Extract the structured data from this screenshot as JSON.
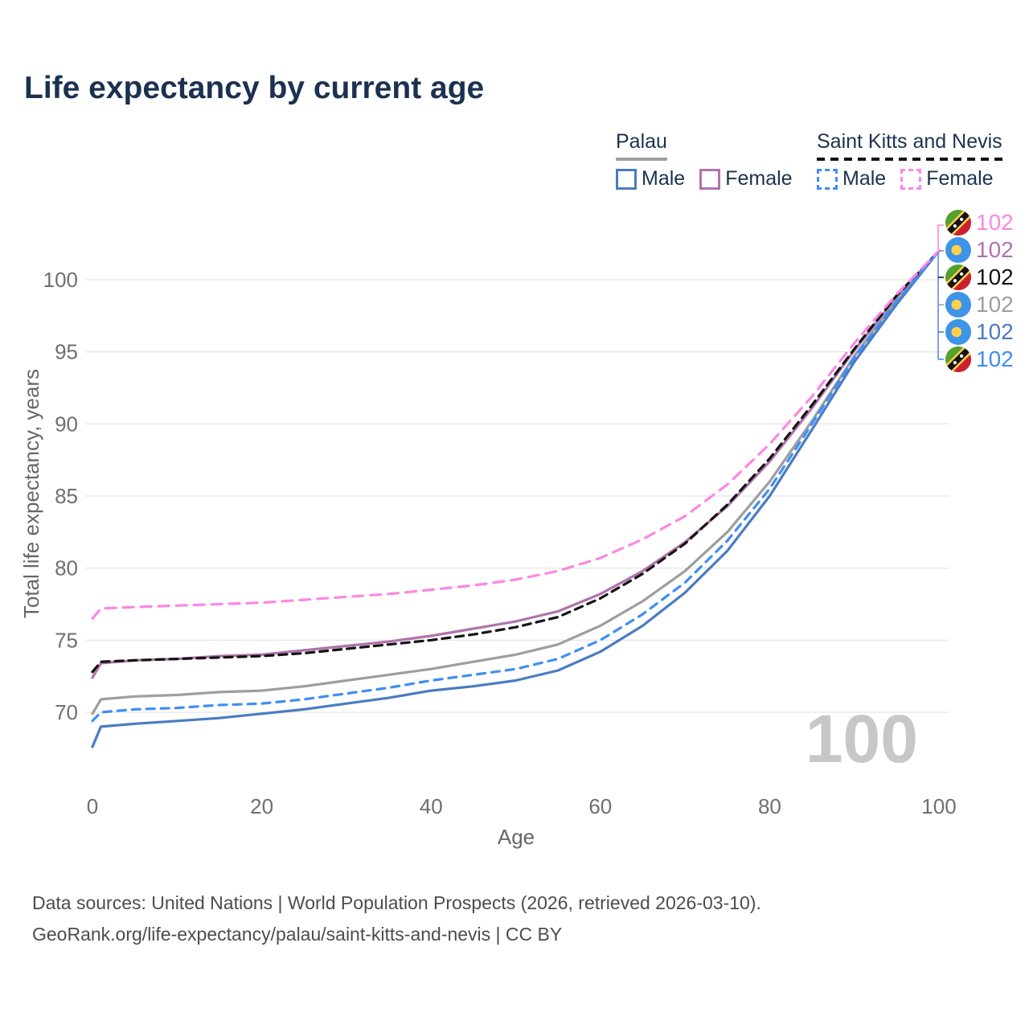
{
  "title": "Life expectancy by current age",
  "legend": {
    "groups": [
      {
        "name": "Palau",
        "line_style": "solid",
        "color": "#9e9e9e",
        "items": [
          {
            "label": "Male",
            "color": "#4b7bc2",
            "dashed": false
          },
          {
            "label": "Female",
            "color": "#b073ac",
            "dashed": false
          }
        ]
      },
      {
        "name": "Saint Kitts and Nevis",
        "line_style": "dashed",
        "color": "#141414",
        "items": [
          {
            "label": "Male",
            "color": "#3f8ef5",
            "dashed": true
          },
          {
            "label": "Female",
            "color": "#fb87e3",
            "dashed": true
          }
        ]
      }
    ]
  },
  "chart_data": {
    "type": "line",
    "title": "Life expectancy by current age",
    "xlabel": "Age",
    "ylabel": "Total life expectancy, years",
    "xticks": [
      0,
      20,
      40,
      60,
      80,
      100
    ],
    "yticks": [
      70,
      75,
      80,
      85,
      90,
      95,
      100
    ],
    "xlim": [
      0,
      100
    ],
    "ylim": [
      66,
      103
    ],
    "grid": "horizontal",
    "watermark": "100",
    "x": [
      0,
      1,
      5,
      10,
      15,
      20,
      25,
      30,
      35,
      40,
      45,
      50,
      55,
      60,
      65,
      70,
      75,
      80,
      85,
      90,
      95,
      100
    ],
    "series": [
      {
        "id": "palau-male",
        "label": "Male",
        "country": "Palau",
        "color": "#4b7bc2",
        "line_style": "solid",
        "values": [
          67.6,
          69.0,
          69.2,
          69.4,
          69.6,
          69.9,
          70.2,
          70.6,
          71.0,
          71.5,
          71.8,
          72.2,
          72.9,
          74.2,
          76.0,
          78.3,
          81.2,
          85.0,
          89.6,
          94.3,
          98.3,
          102
        ]
      },
      {
        "id": "palau-female",
        "label": "Female",
        "country": "Palau",
        "color": "#b073ac",
        "line_style": "solid",
        "values": [
          72.4,
          73.4,
          73.6,
          73.7,
          73.9,
          74.0,
          74.3,
          74.6,
          74.9,
          75.3,
          75.8,
          76.3,
          77.0,
          78.2,
          79.8,
          81.8,
          84.3,
          87.4,
          91.1,
          95.1,
          98.8,
          102
        ]
      },
      {
        "id": "palau-total",
        "label": "Palau",
        "country": "Palau",
        "color": "#9e9e9e",
        "line_style": "solid",
        "values": [
          69.9,
          70.9,
          71.1,
          71.2,
          71.4,
          71.5,
          71.8,
          72.2,
          72.6,
          73.0,
          73.5,
          74.0,
          74.7,
          76.0,
          77.7,
          79.8,
          82.5,
          86.0,
          90.2,
          94.7,
          98.6,
          102
        ]
      },
      {
        "id": "skn-male",
        "label": "Male",
        "country": "Saint Kitts and Nevis",
        "color": "#3f8ef5",
        "line_style": "dashed",
        "values": [
          69.4,
          70.0,
          70.2,
          70.3,
          70.5,
          70.6,
          70.9,
          71.3,
          71.7,
          72.2,
          72.6,
          73.0,
          73.7,
          75.0,
          76.8,
          79.0,
          81.9,
          85.5,
          90.0,
          94.6,
          98.5,
          102
        ]
      },
      {
        "id": "skn-female",
        "label": "Female",
        "country": "Saint Kitts and Nevis",
        "color": "#fb87e3",
        "line_style": "dashed",
        "values": [
          76.5,
          77.2,
          77.3,
          77.4,
          77.5,
          77.6,
          77.8,
          78.0,
          78.2,
          78.5,
          78.8,
          79.2,
          79.8,
          80.7,
          82.0,
          83.6,
          85.8,
          88.6,
          91.9,
          95.6,
          99.0,
          102
        ]
      },
      {
        "id": "skn-total",
        "label": "Saint Kitts and Nevis",
        "country": "Saint Kitts and Nevis",
        "color": "#141414",
        "line_style": "dashed",
        "values": [
          72.8,
          73.5,
          73.6,
          73.7,
          73.8,
          73.9,
          74.1,
          74.4,
          74.7,
          75.0,
          75.4,
          75.9,
          76.6,
          77.9,
          79.6,
          81.7,
          84.4,
          87.6,
          91.3,
          95.2,
          98.9,
          102
        ]
      }
    ],
    "end_labels": [
      {
        "series_id": "skn-female",
        "flag": "saint-kitts-and-nevis",
        "value": "102"
      },
      {
        "series_id": "palau-female",
        "flag": "palau",
        "value": "102"
      },
      {
        "series_id": "skn-total",
        "flag": "saint-kitts-and-nevis",
        "value": "102"
      },
      {
        "series_id": "palau-total",
        "flag": "palau",
        "value": "102"
      },
      {
        "series_id": "palau-male",
        "flag": "palau",
        "value": "102"
      },
      {
        "series_id": "skn-male",
        "flag": "saint-kitts-and-nevis",
        "value": "102"
      }
    ]
  },
  "footer": {
    "line1": "Data sources: United Nations | World Population Prospects (2026, retrieved 2026-03-10).",
    "line2": "GeoRank.org/life-expectancy/palau/saint-kitts-and-nevis | CC BY"
  }
}
